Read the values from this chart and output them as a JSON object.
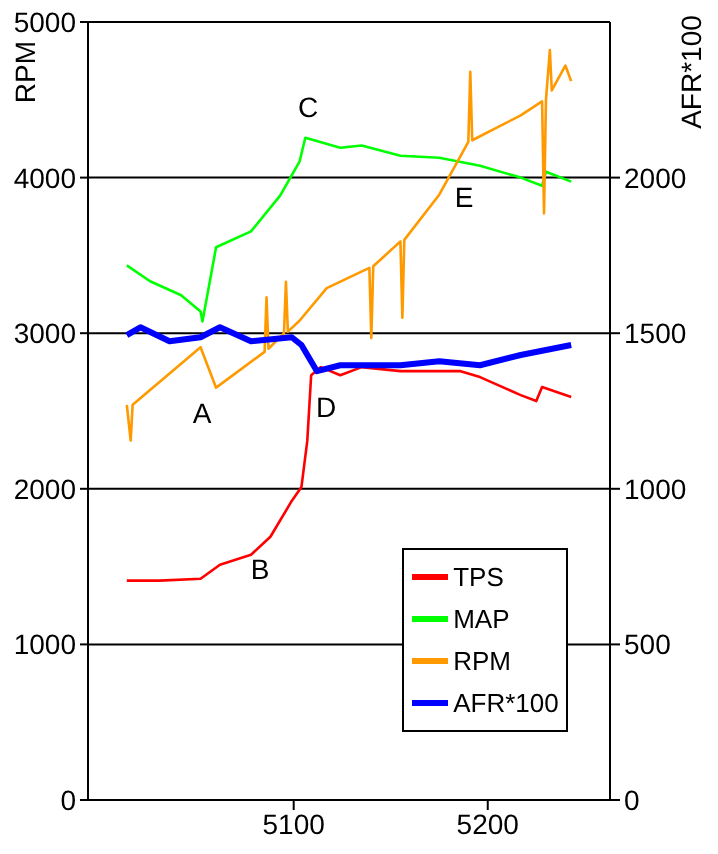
{
  "chart_data": {
    "type": "line",
    "ylabel": "RPM",
    "y2label": "AFR*100",
    "xlim": [
      4994,
      5263
    ],
    "xticks": [
      5100,
      5200
    ],
    "ylim": [
      0,
      5000
    ],
    "yticks": [
      0,
      1000,
      2000,
      3000,
      4000,
      5000
    ],
    "y2lim": [
      0,
      2500
    ],
    "y2ticks": [
      0,
      500,
      1000,
      1500,
      2000
    ],
    "grid": "y",
    "legend": "bottom right",
    "marker": "none",
    "annotations": [
      "A",
      "B",
      "C",
      "D",
      "E"
    ],
    "series": [
      {
        "name": "TPS",
        "color": "#ff0000",
        "axis": "y2",
        "x": [
          5014,
          5031,
          5052,
          5062,
          5078,
          5088,
          5099,
          5104,
          5107,
          5109,
          5114,
          5124,
          5135,
          5155,
          5175,
          5186,
          5196,
          5217,
          5225,
          5228,
          5243
        ],
        "values": [
          705,
          705,
          711,
          756,
          788,
          846,
          961,
          1006,
          1154,
          1365,
          1391,
          1365,
          1391,
          1378,
          1378,
          1378,
          1359,
          1301,
          1282,
          1327,
          1295
        ]
      },
      {
        "name": "MAP",
        "color": "#00ff00",
        "axis": "y2",
        "x": [
          5014,
          5026,
          5042,
          5052,
          5053,
          5060,
          5078,
          5093,
          5103,
          5106,
          5124,
          5135,
          5155,
          5175,
          5196,
          5217,
          5228,
          5230,
          5243
        ],
        "values": [
          1718,
          1667,
          1622,
          1570,
          1538,
          1776,
          1827,
          1942,
          2051,
          2128,
          2096,
          2103,
          2070,
          2064,
          2038,
          2000,
          1974,
          2019,
          1987
        ]
      },
      {
        "name": "RPM",
        "color": "#ff9900",
        "x": [
          5014,
          5016,
          5017,
          5052,
          5060,
          5085,
          5086,
          5087,
          5095,
          5096,
          5097,
          5103,
          5117,
          5139,
          5140,
          5141,
          5155,
          5156,
          5157,
          5175,
          5190,
          5191,
          5192,
          5217,
          5228,
          5229,
          5230,
          5232,
          5233,
          5240,
          5243
        ],
        "values": [
          2540,
          2310,
          2540,
          2910,
          2650,
          2880,
          3230,
          2900,
          3000,
          3330,
          3010,
          3080,
          3290,
          3420,
          2970,
          3430,
          3590,
          3100,
          3600,
          3890,
          4230,
          4680,
          4240,
          4400,
          4490,
          3770,
          4500,
          4820,
          4560,
          4720,
          4620
        ]
      },
      {
        "name": "AFR*100",
        "color": "#0000ff",
        "axis": "y2",
        "x": [
          5014,
          5021,
          5036,
          5052,
          5062,
          5078,
          5099,
          5104,
          5112,
          5124,
          5155,
          5175,
          5196,
          5217,
          5243
        ],
        "values": [
          1494,
          1519,
          1474,
          1487,
          1519,
          1474,
          1487,
          1462,
          1378,
          1397,
          1397,
          1410,
          1397,
          1430,
          1462
        ]
      }
    ]
  }
}
